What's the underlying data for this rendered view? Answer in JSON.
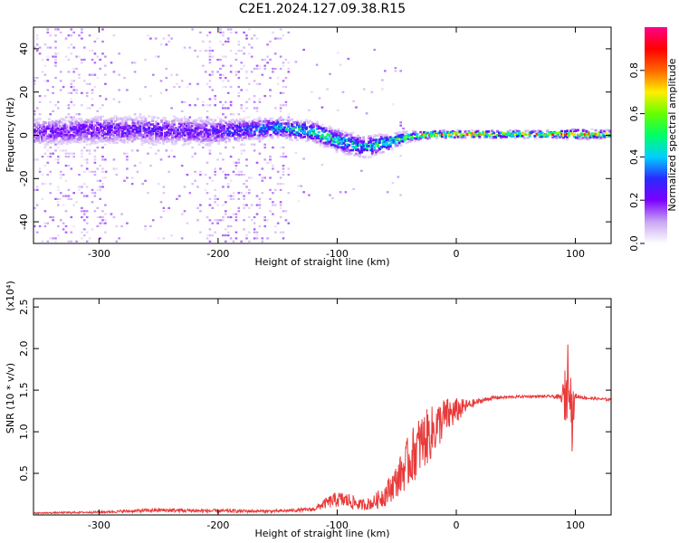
{
  "title": "C2E1.2024.127.09.38.R15",
  "chart_data": [
    {
      "type": "heatmap",
      "xlabel": "Height of straight line (km)",
      "ylabel": "Frequency (Hz)",
      "xlim": [
        -355,
        130
      ],
      "ylim": [
        -50,
        50
      ],
      "x_ticks": [
        -300,
        -200,
        -100,
        0,
        100
      ],
      "y_ticks": [
        -40,
        -20,
        0,
        20,
        40
      ],
      "colorbar": {
        "label": "Normalized spectral amplitude",
        "range": [
          0.0,
          1.0
        ],
        "ticks": [
          0.0,
          0.2,
          0.4,
          0.6,
          0.8
        ],
        "colors": [
          "#ffffff",
          "#c9a6f2",
          "#7b00ff",
          "#2a2aff",
          "#00cfff",
          "#00ff66",
          "#66ff00",
          "#ffee00",
          "#ff6600",
          "#ff0000",
          "#ff0088"
        ]
      },
      "ridge": {
        "x": [
          -355,
          -300,
          -250,
          -210,
          -180,
          -150,
          -120,
          -100,
          -80,
          -60,
          -40,
          -20,
          0,
          40,
          80,
          100,
          130
        ],
        "frequency": [
          2,
          3,
          3,
          2,
          3,
          4,
          2,
          -2,
          -5,
          -3,
          0,
          1,
          1,
          1,
          1,
          1,
          1
        ],
        "amplitude": [
          0.22,
          0.25,
          0.26,
          0.24,
          0.35,
          0.45,
          0.55,
          0.5,
          0.45,
          0.55,
          0.6,
          0.8,
          0.85,
          0.72,
          0.78,
          0.8,
          0.7
        ],
        "width_hz": [
          12,
          12,
          12,
          12,
          9,
          8,
          8,
          9,
          9,
          7,
          4,
          3,
          3,
          3,
          3,
          4,
          3
        ]
      },
      "scatter_regions": [
        {
          "x": [
            -355,
            -295
          ],
          "ylim": [
            -50,
            50
          ],
          "density": "high"
        },
        {
          "x": [
            -295,
            -210
          ],
          "ylim": [
            -50,
            50
          ],
          "density": "low"
        },
        {
          "x": [
            -210,
            -140
          ],
          "ylim": [
            -50,
            50
          ],
          "density": "high"
        },
        {
          "x": [
            -140,
            -40
          ],
          "ylim": [
            -30,
            40
          ],
          "density": "very low"
        }
      ]
    },
    {
      "type": "line",
      "xlabel": "Height of straight line (km)",
      "ylabel": "SNR (10 * v/v)",
      "y_multiplier": "(x10⁴)",
      "xlim": [
        -355,
        130
      ],
      "ylim": [
        0,
        2.6
      ],
      "x_ticks": [
        -300,
        -200,
        -100,
        0,
        100
      ],
      "y_ticks": [
        0.5,
        1.0,
        1.5,
        2.0,
        2.5
      ],
      "color": "#e83a3a",
      "series": [
        {
          "x": [
            -355,
            -300,
            -250,
            -200,
            -150,
            -120,
            -110,
            -100,
            -90,
            -80,
            -70,
            -60,
            -50,
            -40,
            -30,
            -20,
            -10,
            0,
            10,
            20,
            30,
            40,
            60,
            80,
            88,
            92,
            95,
            97,
            100,
            110,
            130
          ],
          "values": [
            0.02,
            0.03,
            0.05,
            0.04,
            0.04,
            0.06,
            0.12,
            0.16,
            0.14,
            0.1,
            0.12,
            0.2,
            0.35,
            0.55,
            0.75,
            0.9,
            1.1,
            1.2,
            1.3,
            1.36,
            1.4,
            1.41,
            1.42,
            1.42,
            1.4,
            1.3,
            1.75,
            1.0,
            1.42,
            1.4,
            1.38
          ],
          "noise": [
            0.01,
            0.015,
            0.03,
            0.03,
            0.02,
            0.03,
            0.08,
            0.12,
            0.12,
            0.08,
            0.1,
            0.18,
            0.25,
            0.4,
            0.45,
            0.4,
            0.3,
            0.2,
            0.08,
            0.04,
            0.03,
            0.02,
            0.02,
            0.02,
            0.05,
            0.5,
            0.6,
            0.5,
            0.04,
            0.02,
            0.02
          ]
        }
      ]
    }
  ]
}
